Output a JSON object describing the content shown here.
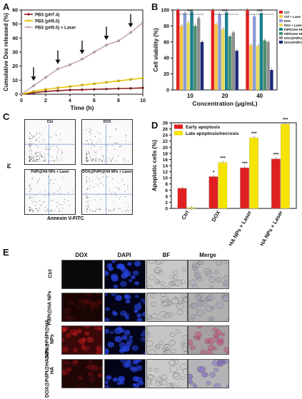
{
  "panels": {
    "A": "A",
    "B": "B",
    "C": "C",
    "D": "D",
    "E": "E"
  },
  "chart_data": [
    {
      "type": "line",
      "panel": "A",
      "xlabel": "Time (h)",
      "ylabel": "Cumulative Dox released (%)",
      "xlim": [
        0,
        10
      ],
      "ylim": [
        0,
        60
      ],
      "xticks": [
        "0",
        "2",
        "4",
        "6",
        "8",
        "10"
      ],
      "yticks": [
        "0",
        "10",
        "20",
        "30",
        "40",
        "50",
        "60"
      ],
      "legend_position": "top-left",
      "series": [
        {
          "name": "PBS (pH7.4)",
          "color": "#8b1a1a",
          "x": [
            0,
            1,
            2,
            3,
            4,
            5,
            6,
            7,
            8,
            9,
            10
          ],
          "y": [
            0,
            1,
            2,
            2.5,
            3,
            3.2,
            3.5,
            3.7,
            4,
            4.2,
            4.5
          ]
        },
        {
          "name": "PBS (pH5.5)",
          "color": "#e8c400",
          "x": [
            0,
            1,
            2,
            3,
            4,
            5,
            6,
            7,
            8,
            9,
            10
          ],
          "y": [
            0,
            2,
            3.5,
            4.5,
            5.5,
            6.5,
            7.5,
            8.5,
            9.5,
            10.5,
            11.5
          ]
        },
        {
          "name": "PBS (pH5.5) + Laser",
          "color": "#c4a8b8",
          "x": [
            0,
            1,
            2,
            3,
            4,
            5,
            6,
            7,
            8,
            9,
            10
          ],
          "y": [
            0,
            6,
            12,
            18,
            21,
            25,
            30,
            35,
            38,
            44,
            51
          ]
        }
      ],
      "arrows_at_x": [
        1,
        3,
        5,
        7,
        9
      ]
    },
    {
      "type": "bar",
      "panel": "B",
      "xlabel": "Concentration (μg/mL)",
      "ylabel": "Cell viability (%)",
      "ylim": [
        0,
        100
      ],
      "yticks": [
        "0",
        "20",
        "40",
        "60",
        "80",
        "100"
      ],
      "categories": [
        "10",
        "20",
        "40"
      ],
      "legend_position": "top-right",
      "series": [
        {
          "name": "Ctrl",
          "color": "#e02020",
          "values": [
            100,
            100,
            100
          ]
        },
        {
          "name": "Ctrl + Laser",
          "color": "#f5c542",
          "values": [
            80,
            82,
            56
          ]
        },
        {
          "name": "DOX",
          "color": "#8a9bd6",
          "values": [
            96,
            95,
            92
          ]
        },
        {
          "name": "DOX + Laser",
          "color": "#e8d85a",
          "values": [
            84,
            76,
            55
          ]
        },
        {
          "name": "PdPt@HA NPs",
          "color": "#1a7f8e",
          "values": [
            98,
            97,
            96
          ]
        },
        {
          "name": "PdPt@HA NPs + Laser",
          "color": "#4a8f6e",
          "values": [
            80,
            67,
            62
          ]
        },
        {
          "name": "DOX@PdPt@HA NPs",
          "color": "#8f8f8f",
          "values": [
            90,
            72,
            60
          ]
        },
        {
          "name": "DOX@PdPt@HA NPs + Laser",
          "color": "#1c2a78",
          "values": [
            60,
            49,
            25
          ]
        }
      ],
      "significance": [
        "***",
        "***",
        "***"
      ]
    },
    {
      "type": "bar",
      "panel": "D",
      "ylabel": "Apoptotic cells (%)",
      "ylim": [
        0,
        28
      ],
      "yticks": [
        "0",
        "2",
        "4",
        "6",
        "8",
        "10",
        "12",
        "14",
        "16",
        "18",
        "20",
        "22",
        "24",
        "26",
        "28"
      ],
      "categories": [
        "Ctrl",
        "DOX",
        "PdPt@HA NPs + Laser",
        "DOX@PdPt@HA NPs + Laser"
      ],
      "legend_position": "top-left",
      "series": [
        {
          "name": "Early apoptosis",
          "color": "#e02020",
          "values": [
            6.6,
            10.4,
            13.3,
            16.2
          ]
        },
        {
          "name": "Late apoptosis/necrosis",
          "color": "#f5e400",
          "values": [
            0.3,
            15.0,
            23.1,
            27.6
          ]
        }
      ],
      "annotations": [
        "*",
        "***",
        "***",
        "***",
        "***",
        "***",
        "***"
      ]
    }
  ],
  "flow": {
    "title": "C",
    "ylabel": "PI",
    "xlabel": "Annexin V-FITC",
    "cells": [
      "Ctrl",
      "DOX",
      "PdPt@HA NPs + Laser",
      "DOX@PdPt@HA NPs + Laser"
    ]
  },
  "micro": {
    "columns": [
      "DOX",
      "DAPI",
      "BF",
      "Merge"
    ],
    "rows": [
      "Ctrl",
      "PdPt@HA NPs",
      "DOX@PdPt@HA NPs",
      "DOX@PdPt@HA NPs + HA"
    ]
  }
}
